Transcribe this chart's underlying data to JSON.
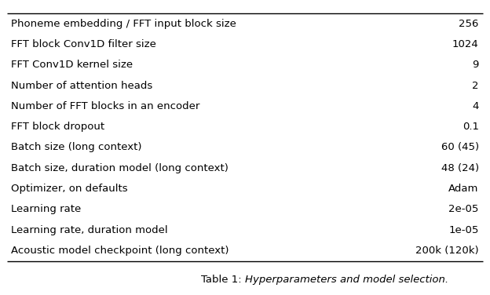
{
  "rows": [
    [
      "Phoneme embedding / FFT input block size",
      "256"
    ],
    [
      "FFT block Conv1D filter size",
      "1024"
    ],
    [
      "FFT Conv1D kernel size",
      "9"
    ],
    [
      "Number of attention heads",
      "2"
    ],
    [
      "Number of FFT blocks in an encoder",
      "4"
    ],
    [
      "FFT block dropout",
      "0.1"
    ],
    [
      "Batch size (long context)",
      "60 (45)"
    ],
    [
      "Batch size, duration model (long context)",
      "48 (24)"
    ],
    [
      "Optimizer, on defaults",
      "Adam"
    ],
    [
      "Learning rate",
      "2e-05"
    ],
    [
      "Learning rate, duration model",
      "1e-05"
    ],
    [
      "Acoustic model checkpoint (long context)",
      "200k (120k)"
    ]
  ],
  "caption_prefix": "Table 1: ",
  "caption_italic": "Hyperparameters and model selection.",
  "bg_color": "#ffffff",
  "text_color": "#000000",
  "border_color": "#000000",
  "font_size": 9.5,
  "caption_font_size": 9.5
}
